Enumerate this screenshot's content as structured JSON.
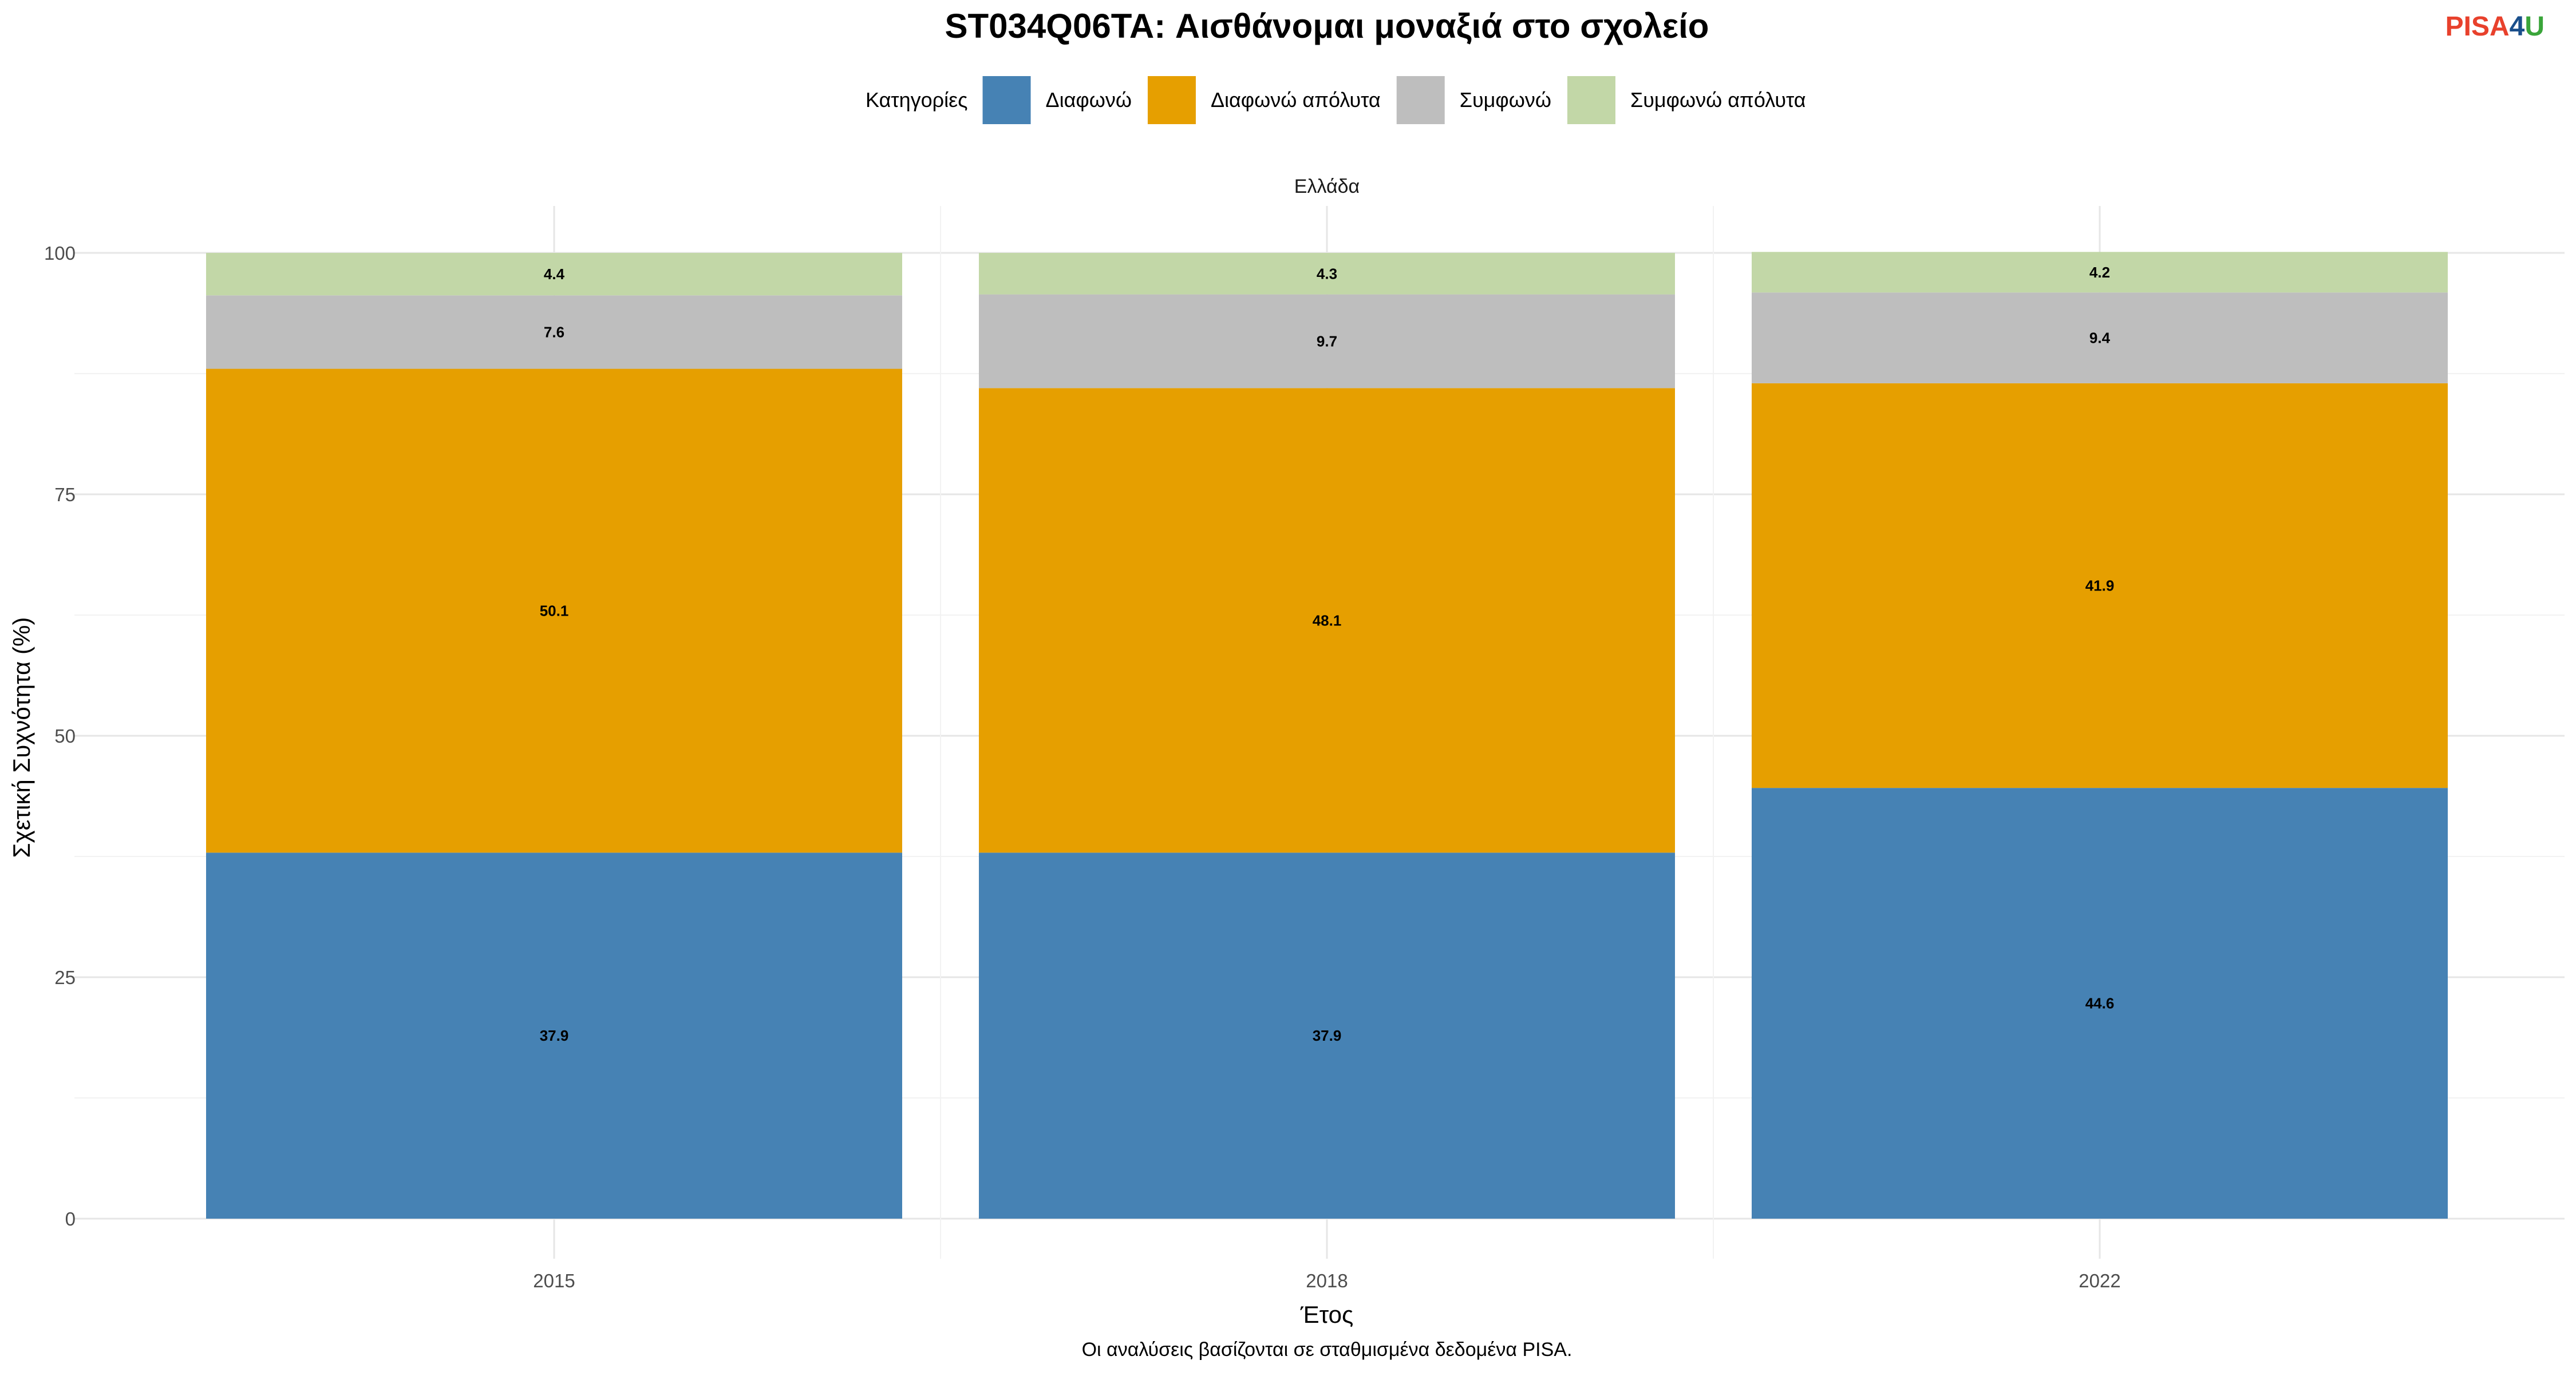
{
  "logo": {
    "part1": "PISA",
    "part2": "4",
    "part3": "U",
    "color_part1": "#e8412c",
    "color_part2": "#1a4f8b",
    "color_part3": "#3aa53a"
  },
  "chart_data": {
    "type": "bar",
    "stacked": true,
    "title": "ST034Q06TA: Αισθάνομαι μοναξιά στο σχολείο",
    "facet": "Ελλάδα",
    "xlabel": "Έτος",
    "ylabel": "Σχετική Συχνότητα (%)",
    "caption": "Οι αναλύσεις βασίζονται σε σταθμισμένα δεδομένα PISA.",
    "legend_title": "Κατηγορίες",
    "legend_position": "top",
    "categories": [
      "2015",
      "2018",
      "2022"
    ],
    "ylim": [
      0,
      100
    ],
    "yticks": [
      "0",
      "25",
      "50",
      "75",
      "100"
    ],
    "grid": true,
    "series": [
      {
        "name": "Διαφωνώ",
        "color": "#4682b4",
        "values": [
          37.9,
          37.9,
          44.6
        ],
        "labels": [
          "37.9",
          "37.9",
          "44.6"
        ]
      },
      {
        "name": "Διαφωνώ απόλυτα",
        "color": "#e69f00",
        "values": [
          50.1,
          48.1,
          41.9
        ],
        "labels": [
          "50.1",
          "48.1",
          "41.9"
        ]
      },
      {
        "name": "Συμφωνώ",
        "color": "#bebebe",
        "values": [
          7.6,
          9.7,
          9.4
        ],
        "labels": [
          "7.6",
          "9.7",
          "9.4"
        ]
      },
      {
        "name": "Συμφωνώ απόλυτα",
        "color": "#c2d7a7",
        "values": [
          4.4,
          4.3,
          4.2
        ],
        "labels": [
          "4.4",
          "4.3",
          "4.2"
        ]
      }
    ]
  }
}
